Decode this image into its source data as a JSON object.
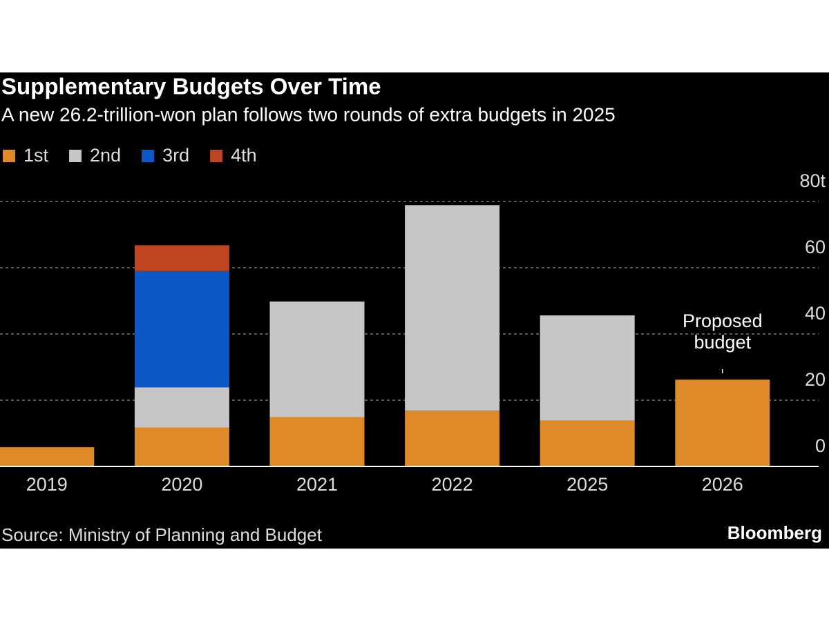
{
  "chart_data": {
    "type": "bar",
    "stacked": true,
    "title": "Supplementary Budgets Over Time",
    "subtitle": "A new 26.2-trillion-won plan follows two rounds of extra budgets in 2025",
    "categories": [
      "2019",
      "2020",
      "2021",
      "2022",
      "2025",
      "2026"
    ],
    "series": [
      {
        "name": "1st",
        "color": "#de8a28",
        "values": [
          5.8,
          11.7,
          14.9,
          16.9,
          13.8,
          26.2
        ]
      },
      {
        "name": "2nd",
        "color": "#c6c6c6",
        "values": [
          null,
          12.2,
          34.9,
          62.0,
          31.8,
          null
        ]
      },
      {
        "name": "3rd",
        "color": "#0b58c6",
        "values": [
          null,
          35.1,
          null,
          null,
          null,
          null
        ]
      },
      {
        "name": "4th",
        "color": "#bf4520",
        "values": [
          null,
          7.8,
          null,
          null,
          null,
          null
        ]
      }
    ],
    "ylim": [
      0,
      80
    ],
    "yticks": [
      0,
      20,
      40,
      60,
      {
        "value": 80,
        "label": "80t"
      }
    ],
    "grid": true,
    "annotation": {
      "lines": [
        "Proposed",
        "budget"
      ],
      "category": "2026"
    },
    "source": "Source: Ministry of Planning and Budget",
    "brand": "Bloomberg"
  }
}
